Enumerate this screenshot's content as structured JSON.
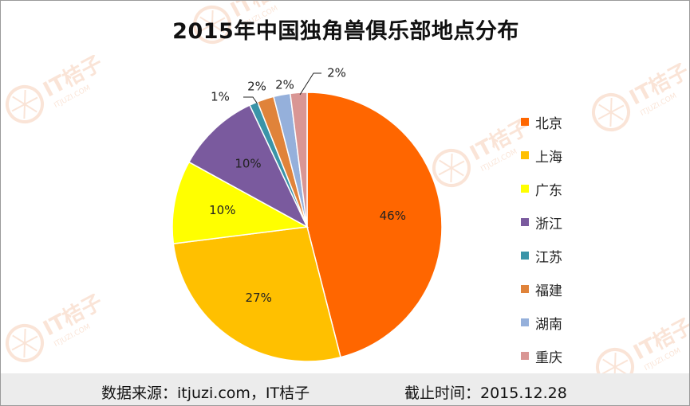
{
  "chart_data": {
    "type": "pie",
    "title": "2015年中国独角兽俱乐部地点分布",
    "categories": [
      "北京",
      "上海",
      "广东",
      "浙江",
      "江苏",
      "福建",
      "湖南",
      "重庆"
    ],
    "values": [
      46,
      27,
      10,
      10,
      1,
      2,
      2,
      2
    ],
    "data_labels": [
      "46%",
      "27%",
      "10%",
      "10%",
      "1%",
      "2%",
      "2%",
      "2%"
    ],
    "colors": [
      "#ff6600",
      "#ffc000",
      "#ffff00",
      "#7a5a9e",
      "#3a94a8",
      "#e0833a",
      "#95b0db",
      "#d99694"
    ],
    "legend_position": "right"
  },
  "watermark": {
    "text": "IT桔子",
    "subtext": "ITJUZI.COM",
    "icon": "orange-slice-icon",
    "color": "#f4c5a8"
  },
  "footer": {
    "source": "数据来源：itjuzi.com，IT桔子",
    "date": "截止时间：2015.12.28"
  }
}
